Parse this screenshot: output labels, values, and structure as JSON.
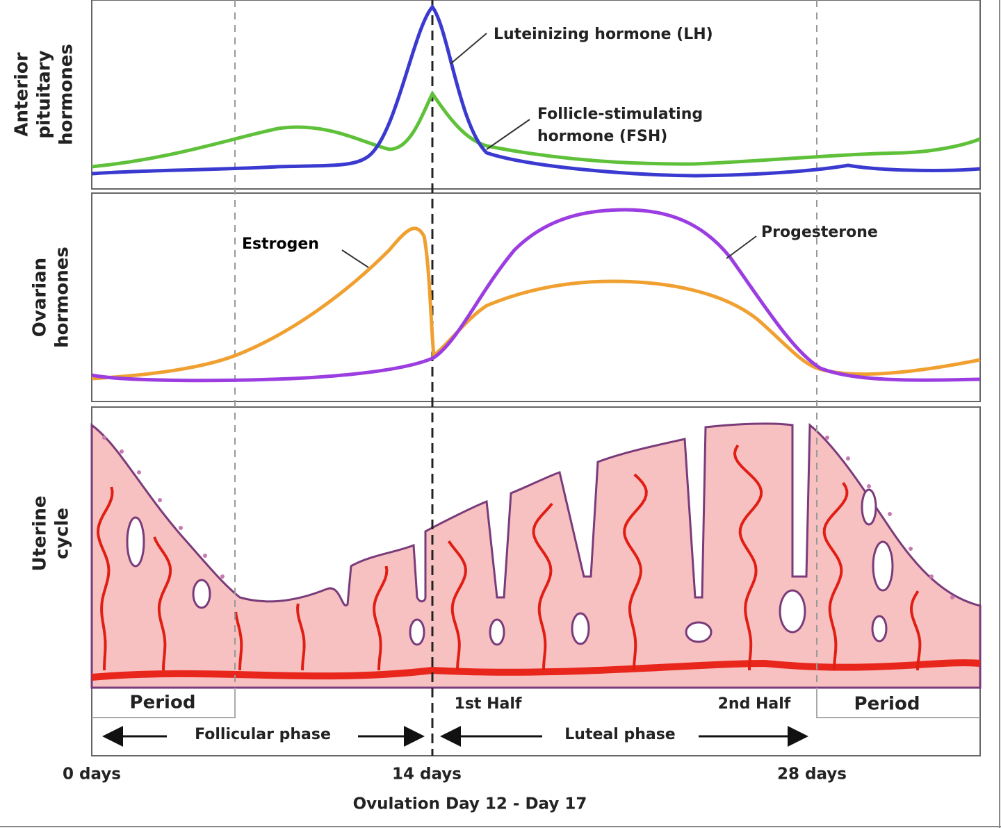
{
  "panels": [
    {
      "label_lines": [
        "Anterior",
        "pituitary",
        "hormones"
      ]
    },
    {
      "label_lines": [
        "Ovarian",
        "hormones"
      ]
    },
    {
      "label_lines": [
        "Uterine",
        "cycle"
      ]
    }
  ],
  "curves": {
    "lh": "Luteinizing hormone (LH)",
    "fsh": [
      "Follicle-stimulating",
      "hormone (FSH)"
    ],
    "estrogen": "Estrogen",
    "progesterone": "Progesterone"
  },
  "stages": {
    "period_start": "Period",
    "first_half": "1st Half",
    "second_half": "2nd Half",
    "period_end": "Period"
  },
  "phases": {
    "follicular": "Follicular phase",
    "luteal": "Luteal phase"
  },
  "days": [
    "0 days",
    "14 days",
    "28 days"
  ],
  "footer": "Ovulation Day 12 - Day 17"
}
